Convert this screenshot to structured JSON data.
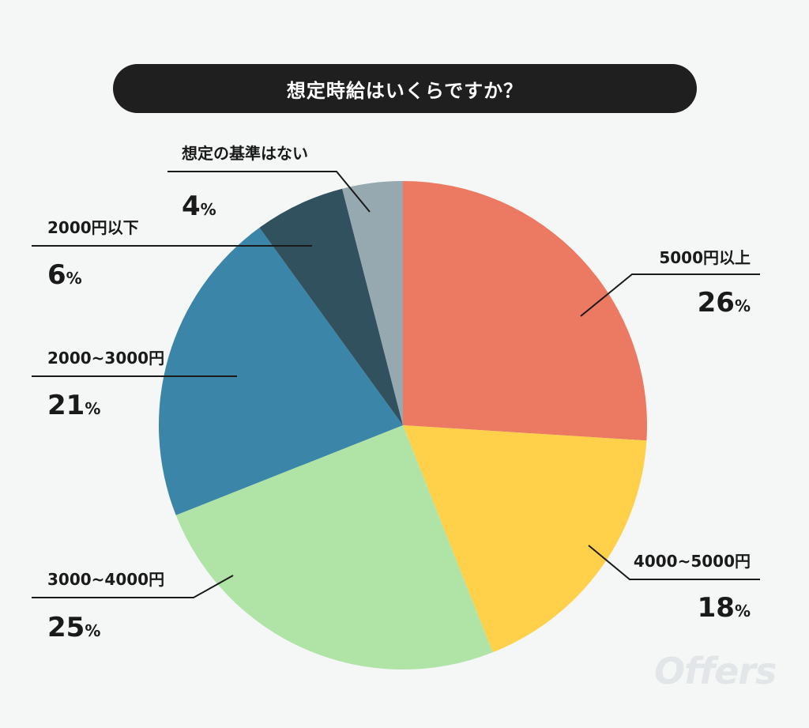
{
  "chart_data": {
    "type": "pie",
    "title": "想定時給はいくらですか？",
    "unit": "%",
    "slices": [
      {
        "label": "5000円以上",
        "value": 26,
        "color": "#ec7a62"
      },
      {
        "label": "4000~5000円",
        "value": 18,
        "color": "#ffd04a"
      },
      {
        "label": "3000~4000円",
        "value": 25,
        "color": "#b0e3a6"
      },
      {
        "label": "2000~3000円",
        "value": 21,
        "color": "#3b86a8"
      },
      {
        "label": "2000円以下",
        "value": 6,
        "color": "#32515f"
      },
      {
        "label": "想定の基準はない",
        "value": 4,
        "color": "#97a9b0"
      }
    ]
  },
  "watermark": "Offers"
}
